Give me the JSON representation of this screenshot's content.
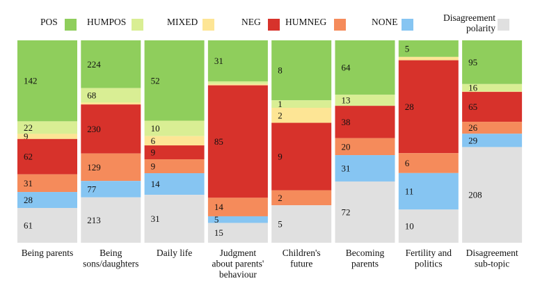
{
  "chart_data": {
    "type": "bar",
    "stacked": true,
    "normalized": true,
    "categories": [
      "Being parents",
      "Being sons/daughters",
      "Daily life",
      "Judgment about parents' behaviour",
      "Children's future",
      "Becoming parents",
      "Fertility and politics",
      "Disagreement sub-topic"
    ],
    "category_lines": [
      [
        "Being parents"
      ],
      [
        "Being",
        "sons/daughters"
      ],
      [
        "Daily life"
      ],
      [
        "Judgment",
        "about parents'",
        "behaviour"
      ],
      [
        "Children's",
        "future"
      ],
      [
        "Becoming",
        "parents"
      ],
      [
        "Fertility and",
        "politics"
      ],
      [
        "Disagreement",
        "sub-topic"
      ]
    ],
    "series": [
      {
        "name": "POS",
        "color": "#8fce5c",
        "values": [
          142,
          224,
          52,
          31,
          8,
          64,
          5,
          95
        ]
      },
      {
        "name": "HUMPOS",
        "color": "#d9ee94",
        "values": [
          22,
          68,
          10,
          2,
          1,
          13,
          0,
          16
        ]
      },
      {
        "name": "MIXED",
        "color": "#fde595",
        "values": [
          9,
          9,
          6,
          1,
          2,
          0,
          1,
          1
        ]
      },
      {
        "name": "NEG",
        "color": "#d7322b",
        "values": [
          62,
          230,
          9,
          85,
          9,
          38,
          28,
          65
        ]
      },
      {
        "name": "HUMNEG",
        "color": "#f58b5b",
        "values": [
          31,
          129,
          9,
          14,
          2,
          20,
          6,
          26
        ]
      },
      {
        "name": "NONE",
        "color": "#86c5f2",
        "values": [
          28,
          77,
          14,
          5,
          0,
          31,
          11,
          29
        ]
      },
      {
        "name": "Disagreement polarity",
        "color": "#e0e0e0",
        "values": [
          61,
          213,
          31,
          15,
          5,
          72,
          10,
          208
        ]
      }
    ],
    "legend": {
      "placement": "top",
      "entries": [
        "POS",
        "HUMPOS",
        "MIXED",
        "NEG",
        "HUMNEG",
        "NONE",
        "Disagreement polarity"
      ],
      "entry_lines": [
        [
          "POS"
        ],
        [
          "HUMPOS"
        ],
        [
          "MIXED"
        ],
        [
          "NEG"
        ],
        [
          "HUMNEG"
        ],
        [
          "NONE"
        ],
        [
          "Disagreement",
          "polarity"
        ]
      ]
    },
    "ylim": [
      0,
      1
    ],
    "xlabel": "",
    "ylabel": "",
    "grid": false
  }
}
